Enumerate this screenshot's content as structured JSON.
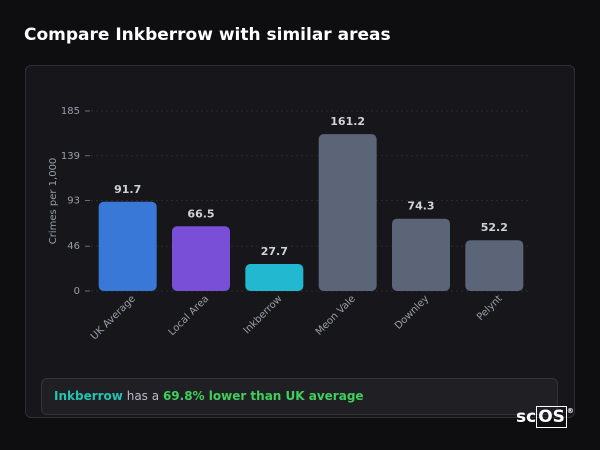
{
  "chart_data": {
    "type": "bar",
    "title": "Compare Inkberrow with similar areas",
    "y_label": "Crimes per 1,000",
    "categories": [
      "UK Average",
      "Local Area",
      "Inkberrow",
      "Meon Vale",
      "Downley",
      "Pelynt"
    ],
    "values": [
      91.7,
      66.5,
      27.7,
      161.2,
      74.3,
      52.2
    ],
    "colors": [
      "#3a78d8",
      "#7a4fd8",
      "#22b8d0",
      "#5b6577",
      "#5b6577",
      "#5b6577"
    ],
    "ylim": [
      0,
      185
    ],
    "yticks": [
      0,
      46,
      93,
      139,
      185
    ],
    "grid": true
  },
  "footer": {
    "subject": "Inkberrow",
    "connector": "has a",
    "comparison": "69.8% lower than UK average"
  },
  "logo": {
    "prefix": "sc",
    "boxed": "OS",
    "mark": "®"
  }
}
